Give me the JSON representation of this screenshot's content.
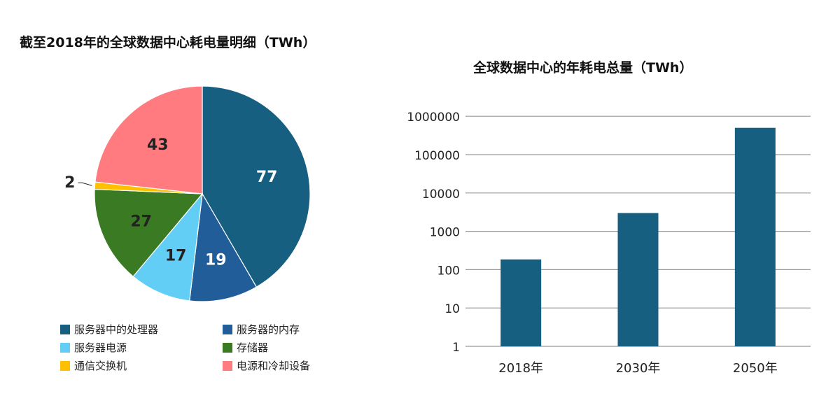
{
  "chart_data": [
    {
      "type": "pie",
      "title": "截至2018年的全球数据中心耗电量明细（TWh）",
      "slices": [
        {
          "name": "服务器中的处理器",
          "value": 77,
          "color": "#175f80"
        },
        {
          "name": "服务器的内存",
          "value": 19,
          "color": "#215d99"
        },
        {
          "name": "服务器电源",
          "value": 17,
          "color": "#62cdf5"
        },
        {
          "name": "存储器",
          "value": 27,
          "color": "#3a7a22"
        },
        {
          "name": "通信交换机",
          "value": 2,
          "color": "#ffc000"
        },
        {
          "name": "电源和冷却设备",
          "value": 43,
          "color": "#ff7b7f"
        }
      ],
      "legend_position": "bottom"
    },
    {
      "type": "bar",
      "title": "全球数据中心的年耗电总量（TWh）",
      "categories": [
        "2018年",
        "2030年",
        "2050年"
      ],
      "values": [
        185,
        3000,
        500000
      ],
      "y_scale": "log",
      "ylim": [
        1,
        1000000
      ],
      "yticks": [
        "1",
        "10",
        "100",
        "1000",
        "10000",
        "100000",
        "1000000"
      ],
      "grid": true,
      "color": "#175f80"
    }
  ]
}
